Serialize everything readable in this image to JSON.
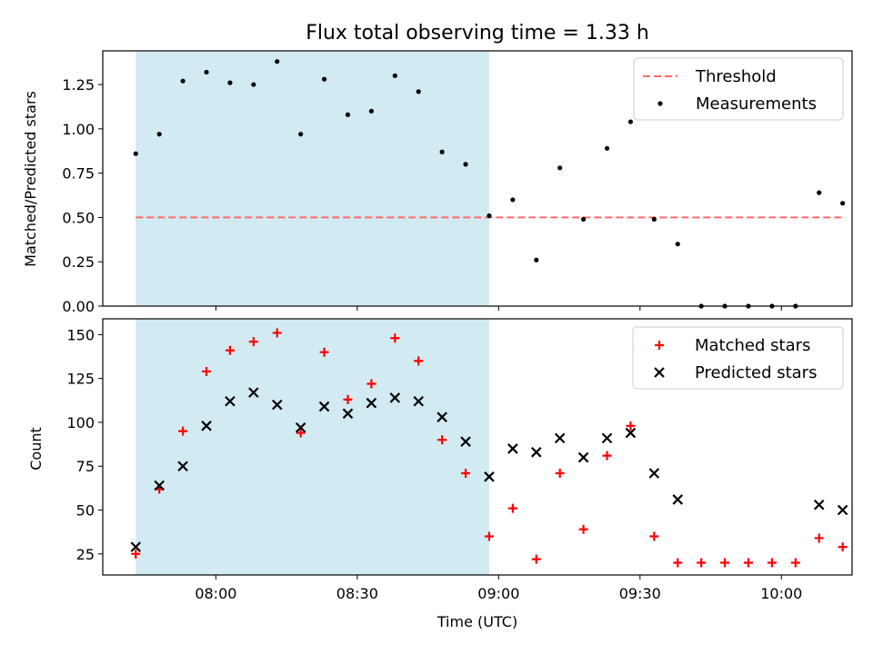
{
  "chart_data": {
    "title": "Flux total observing time = 1.33 h",
    "xlabel": "Time (UTC)",
    "xticks": [
      "08:00",
      "08:30",
      "09:00",
      "09:30",
      "10:00"
    ],
    "xlim": [
      "07:36",
      "10:15"
    ],
    "shaded_span": {
      "start": "07:43",
      "end": "08:58",
      "color": "#add8e6"
    },
    "panels": [
      {
        "type": "scatter",
        "ylabel": "Matched/Predicted stars",
        "ylim": [
          0,
          1.44
        ],
        "yticks": [
          "0.00",
          "0.25",
          "0.50",
          "0.75",
          "1.00",
          "1.25"
        ],
        "threshold": {
          "name": "Threshold",
          "value": 0.5,
          "color": "#ff6b6b",
          "style": "dashed"
        },
        "series": [
          {
            "name": "Measurements",
            "marker": "dot",
            "color": "#000000",
            "points": [
              [
                "07:43",
                0.86
              ],
              [
                "07:48",
                0.97
              ],
              [
                "07:53",
                1.27
              ],
              [
                "07:58",
                1.32
              ],
              [
                "08:03",
                1.26
              ],
              [
                "08:08",
                1.25
              ],
              [
                "08:13",
                1.38
              ],
              [
                "08:18",
                0.97
              ],
              [
                "08:23",
                1.28
              ],
              [
                "08:28",
                1.08
              ],
              [
                "08:33",
                1.1
              ],
              [
                "08:38",
                1.3
              ],
              [
                "08:43",
                1.21
              ],
              [
                "08:48",
                0.87
              ],
              [
                "08:53",
                0.8
              ],
              [
                "08:58",
                0.51
              ],
              [
                "09:03",
                0.6
              ],
              [
                "09:08",
                0.26
              ],
              [
                "09:13",
                0.78
              ],
              [
                "09:18",
                0.49
              ],
              [
                "09:23",
                0.89
              ],
              [
                "09:28",
                1.04
              ],
              [
                "09:33",
                0.49
              ],
              [
                "09:38",
                0.35
              ],
              [
                "09:43",
                0.0
              ],
              [
                "09:48",
                0.0
              ],
              [
                "09:53",
                0.0
              ],
              [
                "09:58",
                0.0
              ],
              [
                "10:03",
                0.0
              ],
              [
                "10:08",
                0.64
              ],
              [
                "10:13",
                0.58
              ]
            ]
          }
        ]
      },
      {
        "type": "scatter",
        "ylabel": "Count",
        "ylim": [
          13,
          159
        ],
        "yticks": [
          "25",
          "50",
          "75",
          "100",
          "125",
          "150"
        ],
        "series": [
          {
            "name": "Matched stars",
            "marker": "plus",
            "color": "#ff0000",
            "points": [
              [
                "07:43",
                25
              ],
              [
                "07:48",
                62
              ],
              [
                "07:53",
                95
              ],
              [
                "07:58",
                129
              ],
              [
                "08:03",
                141
              ],
              [
                "08:08",
                146
              ],
              [
                "08:13",
                151
              ],
              [
                "08:18",
                94
              ],
              [
                "08:23",
                140
              ],
              [
                "08:28",
                113
              ],
              [
                "08:33",
                122
              ],
              [
                "08:38",
                148
              ],
              [
                "08:43",
                135
              ],
              [
                "08:48",
                90
              ],
              [
                "08:53",
                71
              ],
              [
                "08:58",
                35
              ],
              [
                "09:03",
                51
              ],
              [
                "09:08",
                22
              ],
              [
                "09:13",
                71
              ],
              [
                "09:18",
                39
              ],
              [
                "09:23",
                81
              ],
              [
                "09:28",
                98
              ],
              [
                "09:33",
                35
              ],
              [
                "09:38",
                20
              ],
              [
                "09:43",
                20
              ],
              [
                "09:48",
                20
              ],
              [
                "09:53",
                20
              ],
              [
                "09:58",
                20
              ],
              [
                "10:03",
                20
              ],
              [
                "10:08",
                34
              ],
              [
                "10:13",
                29
              ]
            ]
          },
          {
            "name": "Predicted stars",
            "marker": "x",
            "color": "#000000",
            "points": [
              [
                "07:43",
                29
              ],
              [
                "07:48",
                64
              ],
              [
                "07:53",
                75
              ],
              [
                "07:58",
                98
              ],
              [
                "08:03",
                112
              ],
              [
                "08:08",
                117
              ],
              [
                "08:13",
                110
              ],
              [
                "08:18",
                97
              ],
              [
                "08:23",
                109
              ],
              [
                "08:28",
                105
              ],
              [
                "08:33",
                111
              ],
              [
                "08:38",
                114
              ],
              [
                "08:43",
                112
              ],
              [
                "08:48",
                103
              ],
              [
                "08:53",
                89
              ],
              [
                "08:58",
                69
              ],
              [
                "09:03",
                85
              ],
              [
                "09:08",
                83
              ],
              [
                "09:13",
                91
              ],
              [
                "09:18",
                80
              ],
              [
                "09:23",
                91
              ],
              [
                "09:28",
                94
              ],
              [
                "09:33",
                71
              ],
              [
                "09:38",
                56
              ],
              [
                "10:08",
                53
              ],
              [
                "10:13",
                50
              ]
            ]
          }
        ]
      }
    ]
  }
}
